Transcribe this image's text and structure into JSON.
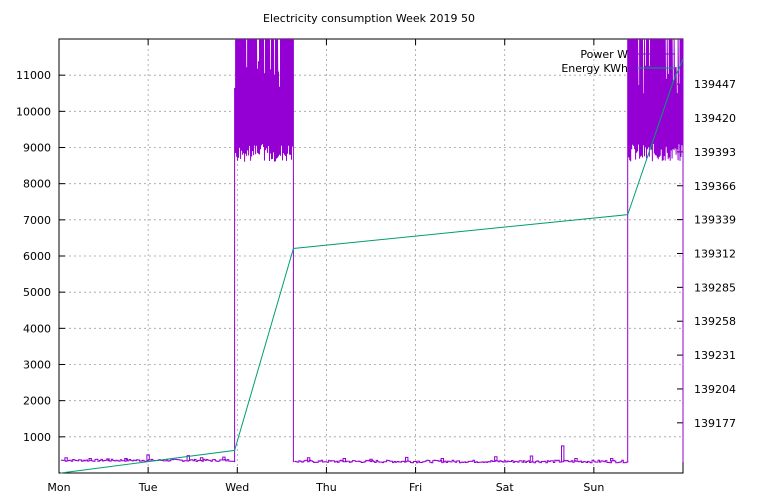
{
  "chart_data": {
    "type": "line",
    "title": "Electricity consumption Week 2019 50",
    "x_ticks": [
      "Mon",
      "Tue",
      "Wed",
      "Thu",
      "Fri",
      "Sat",
      "Sun"
    ],
    "xlim": [
      0,
      7
    ],
    "y_left": {
      "ylim": [
        0,
        12000
      ],
      "ticks": [
        1000,
        2000,
        3000,
        4000,
        5000,
        6000,
        7000,
        8000,
        9000,
        10000,
        11000
      ]
    },
    "y_right": {
      "ylim": [
        139137,
        139483
      ],
      "ticks": [
        139177,
        139204,
        139231,
        139258,
        139285,
        139312,
        139339,
        139366,
        139393,
        139420,
        139447
      ]
    },
    "grid": true,
    "legend_position": "top-right",
    "series": [
      {
        "name": "Power W",
        "axis": "left",
        "color": "#9400d3",
        "segments": [
          {
            "x_start": 0.02,
            "x_end": 1.97,
            "level": 350,
            "jitter": 60,
            "spikes": [
              [
                0.08,
                420
              ],
              [
                0.35,
                400
              ],
              [
                0.55,
                390
              ],
              [
                0.75,
                400
              ],
              [
                1.0,
                500
              ],
              [
                1.45,
                480
              ],
              [
                1.6,
                420
              ],
              [
                1.85,
                440
              ]
            ]
          },
          {
            "x_start": 1.97,
            "x_end": 2.63,
            "level": 9000,
            "peak": 12000,
            "spikes": []
          },
          {
            "x_start": 2.64,
            "x_end": 6.38,
            "level": 320,
            "jitter": 70,
            "spikes": [
              [
                2.8,
                420
              ],
              [
                3.2,
                400
              ],
              [
                3.5,
                380
              ],
              [
                3.9,
                430
              ],
              [
                4.3,
                400
              ],
              [
                4.9,
                450
              ],
              [
                5.3,
                470
              ],
              [
                5.65,
                750
              ],
              [
                5.8,
                400
              ],
              [
                6.2,
                400
              ]
            ]
          },
          {
            "x_start": 6.38,
            "x_end": 7.0,
            "level": 9000,
            "peak": 12000,
            "spikes": []
          }
        ]
      },
      {
        "name": "Energy KWh",
        "axis": "right",
        "color": "#009e73",
        "x": [
          0.02,
          1.97,
          2.63,
          6.38,
          6.9,
          7.0
        ],
        "y": [
          139137,
          139155,
          139316,
          139343,
          139451,
          139467
        ]
      }
    ]
  }
}
